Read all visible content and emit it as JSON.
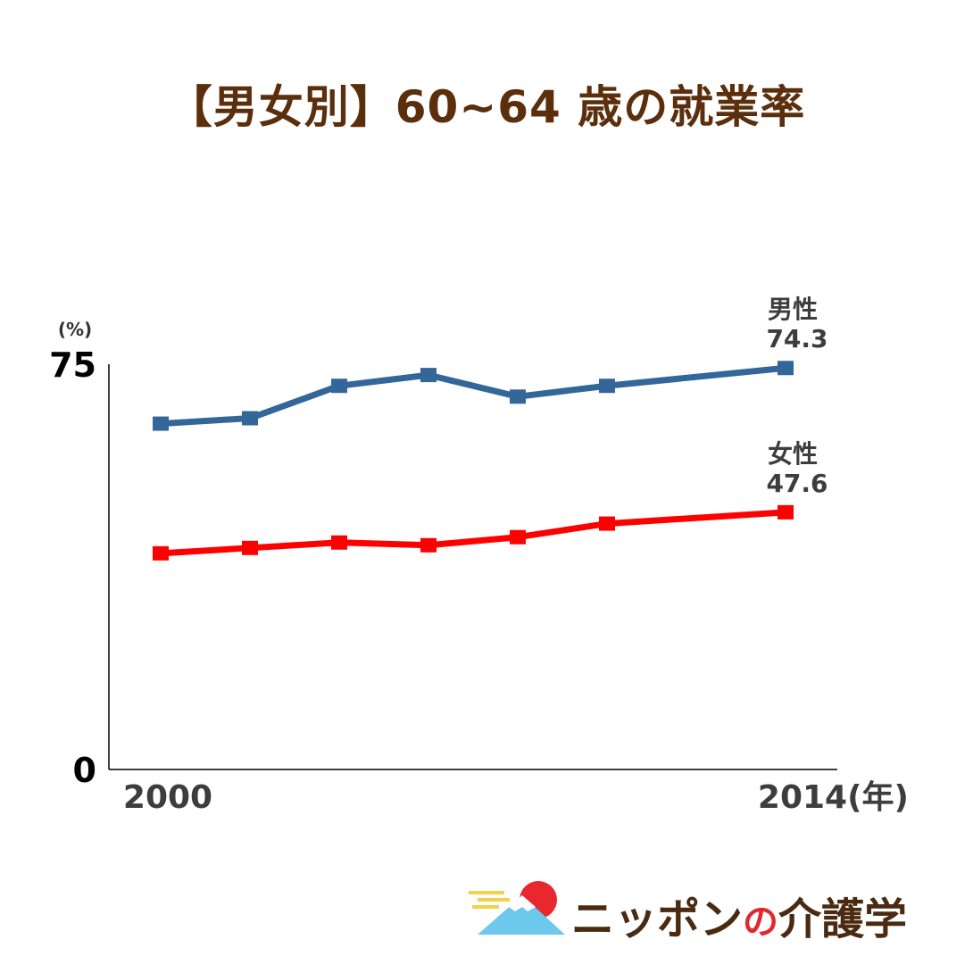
{
  "title": "【男女別】60~64 歳の就業率",
  "chart_data": {
    "type": "line",
    "title": "【男女別】60~64 歳の就業率",
    "x_start_label": "2000",
    "x_end_label": "2014(年)",
    "y_unit_label": "(%)",
    "ylim": [
      0,
      75
    ],
    "y_tick_labels": [
      "75",
      "0"
    ],
    "x": [
      2000,
      2002,
      2004,
      2006,
      2008,
      2010,
      2014
    ],
    "grid": false,
    "series": [
      {
        "name": "男性",
        "end_label": "74.3",
        "color": "#336699",
        "values": [
          64.0,
          65.0,
          71.0,
          73.0,
          69.0,
          71.0,
          74.3
        ]
      },
      {
        "name": "女性",
        "end_label": "47.6",
        "color": "#ff0000",
        "values": [
          40.0,
          41.0,
          42.0,
          41.5,
          43.0,
          45.5,
          47.6
        ]
      }
    ]
  },
  "logo": {
    "text_main_1": "ニッポン",
    "text_no": "の",
    "text_main_2": "介護学",
    "colors": {
      "sun": "#e8282e",
      "mountain": "#6cc8ec",
      "cloud": "#f2d24a",
      "text": "#4a2b12"
    }
  }
}
